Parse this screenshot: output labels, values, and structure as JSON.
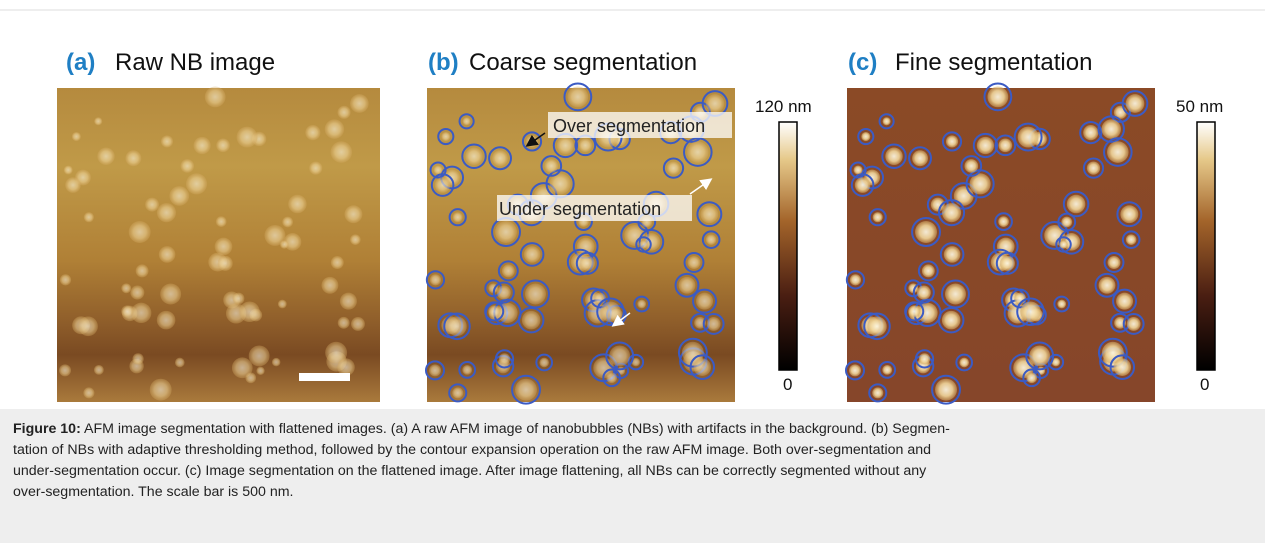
{
  "panels": [
    {
      "label": "(a)",
      "title": "Raw NB image"
    },
    {
      "label": "(b)",
      "title": "Coarse segmentation",
      "annotations": [
        "Over segmentation",
        "Under segmentation"
      ],
      "colorbar": {
        "top": "120 nm",
        "bottom": "0"
      }
    },
    {
      "label": "(c)",
      "title": "Fine segmentation",
      "colorbar": {
        "top": "50 nm",
        "bottom": "0"
      }
    }
  ],
  "caption": {
    "label": "Figure 10:",
    "lines": [
      "AFM image segmentation with flattened images. (a) A raw AFM image of nanobubbles (NBs) with artifacts in the background. (b) Segmen-",
      "tation of NBs with adaptive thresholding method, followed by the contour expansion operation on the raw AFM image. Both over-segmentation and",
      "under-segmentation occur. (c) Image segmentation on the flattened image. After image flattening, all NBs can be correctly segmented without any",
      "over-segmentation. The scale bar is 500 nm."
    ]
  }
}
